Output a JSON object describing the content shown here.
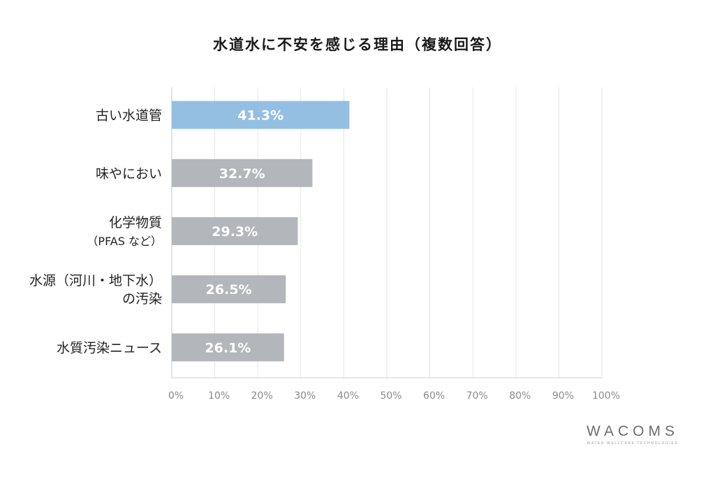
{
  "chart_data": {
    "type": "bar",
    "orientation": "horizontal",
    "title": "水道水に不安を感じる理由（複数回答）",
    "categories": [
      [
        "古い水道管"
      ],
      [
        "味やにおい"
      ],
      [
        "化学物質",
        "（PFAS など）"
      ],
      [
        "水源（河川・地下水）",
        "の汚染"
      ],
      [
        "水質汚染ニュース"
      ]
    ],
    "values": [
      41.3,
      32.7,
      29.3,
      26.5,
      26.1
    ],
    "value_labels": [
      "41.3%",
      "32.7%",
      "29.3%",
      "26.5%",
      "26.1%"
    ],
    "bar_colors": [
      "#94bfe3",
      "#b3b6ba",
      "#b3b6ba",
      "#b3b6ba",
      "#b3b6ba"
    ],
    "xlim": [
      0,
      100
    ],
    "x_ticks": [
      0,
      10,
      20,
      30,
      40,
      50,
      60,
      70,
      80,
      90,
      100
    ],
    "x_tick_labels": [
      "0%",
      "10%",
      "20%",
      "30%",
      "40%",
      "50%",
      "60%",
      "70%",
      "80%",
      "90%",
      "100%"
    ],
    "grid": true
  },
  "brand": {
    "name": "WACOMS",
    "tagline": "WATER WELLCARE TECHNOLOGIES"
  },
  "colors": {
    "highlight": "#94bfe3",
    "bar": "#b3b6ba",
    "grid": "#e6e6e6",
    "axis": "#cfcfcf"
  }
}
